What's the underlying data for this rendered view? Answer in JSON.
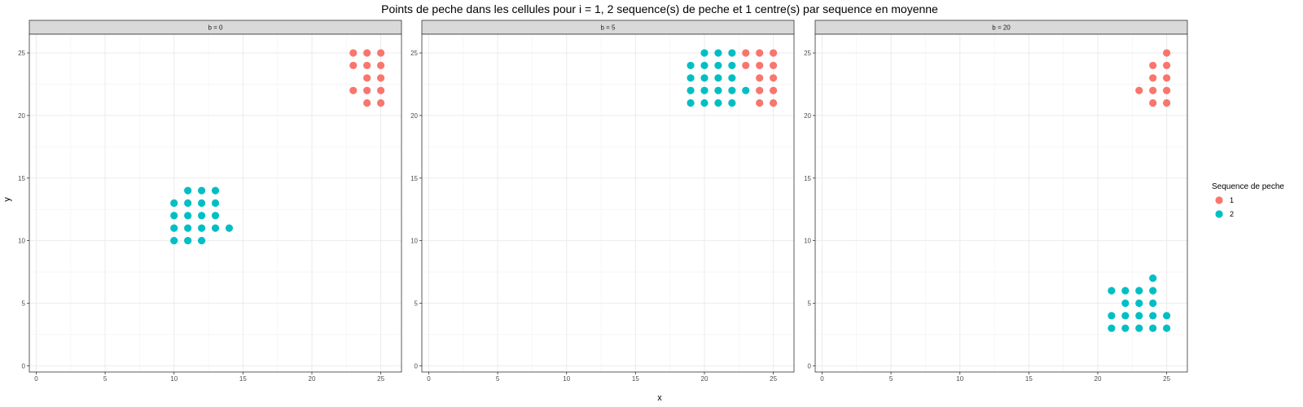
{
  "chart_data": {
    "type": "scatter",
    "title": "Points de peche dans les cellules pour i = 1, 2 sequence(s) de peche et 1 centre(s) par sequence en moyenne",
    "xlabel": "x",
    "ylabel": "y",
    "xlim": [
      -0.5,
      26.5
    ],
    "ylim": [
      -0.5,
      26.5
    ],
    "x_ticks": [
      0,
      5,
      10,
      15,
      20,
      25
    ],
    "y_ticks": [
      0,
      5,
      10,
      15,
      20,
      25
    ],
    "grid": true,
    "legend": {
      "title": "Sequence de peche",
      "position": "right",
      "entries": [
        {
          "label": "1",
          "color": "#F8766D"
        },
        {
          "label": "2",
          "color": "#00BFC4"
        }
      ]
    },
    "panels": [
      {
        "label": "b = 0",
        "series": [
          {
            "name": "1",
            "color": "#F8766D",
            "points": [
              [
                23,
                25
              ],
              [
                24,
                25
              ],
              [
                25,
                25
              ],
              [
                23,
                24
              ],
              [
                24,
                24
              ],
              [
                25,
                24
              ],
              [
                24,
                23
              ],
              [
                25,
                23
              ],
              [
                23,
                22
              ],
              [
                24,
                22
              ],
              [
                25,
                22
              ],
              [
                24,
                21
              ],
              [
                25,
                21
              ]
            ]
          },
          {
            "name": "2",
            "color": "#00BFC4",
            "points": [
              [
                11,
                14
              ],
              [
                12,
                14
              ],
              [
                13,
                14
              ],
              [
                10,
                13
              ],
              [
                11,
                13
              ],
              [
                12,
                13
              ],
              [
                13,
                13
              ],
              [
                10,
                12
              ],
              [
                11,
                12
              ],
              [
                12,
                12
              ],
              [
                13,
                12
              ],
              [
                10,
                11
              ],
              [
                11,
                11
              ],
              [
                12,
                11
              ],
              [
                13,
                11
              ],
              [
                14,
                11
              ],
              [
                10,
                10
              ],
              [
                11,
                10
              ],
              [
                12,
                10
              ]
            ]
          }
        ]
      },
      {
        "label": "b = 5",
        "series": [
          {
            "name": "1",
            "color": "#F8766D",
            "points": [
              [
                23,
                25
              ],
              [
                24,
                25
              ],
              [
                25,
                25
              ],
              [
                23,
                24
              ],
              [
                24,
                24
              ],
              [
                25,
                24
              ],
              [
                24,
                23
              ],
              [
                25,
                23
              ],
              [
                24,
                22
              ],
              [
                25,
                22
              ],
              [
                24,
                21
              ],
              [
                25,
                21
              ]
            ]
          },
          {
            "name": "2",
            "color": "#00BFC4",
            "points": [
              [
                20,
                25
              ],
              [
                21,
                25
              ],
              [
                22,
                25
              ],
              [
                19,
                24
              ],
              [
                20,
                24
              ],
              [
                21,
                24
              ],
              [
                22,
                24
              ],
              [
                19,
                23
              ],
              [
                20,
                23
              ],
              [
                21,
                23
              ],
              [
                22,
                23
              ],
              [
                19,
                22
              ],
              [
                20,
                22
              ],
              [
                21,
                22
              ],
              [
                22,
                22
              ],
              [
                23,
                22
              ],
              [
                19,
                21
              ],
              [
                20,
                21
              ],
              [
                21,
                21
              ],
              [
                22,
                21
              ]
            ]
          }
        ]
      },
      {
        "label": "b = 20",
        "series": [
          {
            "name": "1",
            "color": "#F8766D",
            "points": [
              [
                25,
                25
              ],
              [
                24,
                24
              ],
              [
                25,
                24
              ],
              [
                24,
                23
              ],
              [
                25,
                23
              ],
              [
                23,
                22
              ],
              [
                24,
                22
              ],
              [
                25,
                22
              ],
              [
                24,
                21
              ],
              [
                25,
                21
              ]
            ]
          },
          {
            "name": "2",
            "color": "#00BFC4",
            "points": [
              [
                24,
                7
              ],
              [
                21,
                6
              ],
              [
                22,
                6
              ],
              [
                23,
                6
              ],
              [
                24,
                6
              ],
              [
                22,
                5
              ],
              [
                23,
                5
              ],
              [
                24,
                5
              ],
              [
                21,
                4
              ],
              [
                22,
                4
              ],
              [
                23,
                4
              ],
              [
                24,
                4
              ],
              [
                25,
                4
              ],
              [
                21,
                3
              ],
              [
                22,
                3
              ],
              [
                23,
                3
              ],
              [
                24,
                3
              ],
              [
                25,
                3
              ]
            ]
          }
        ]
      }
    ]
  }
}
